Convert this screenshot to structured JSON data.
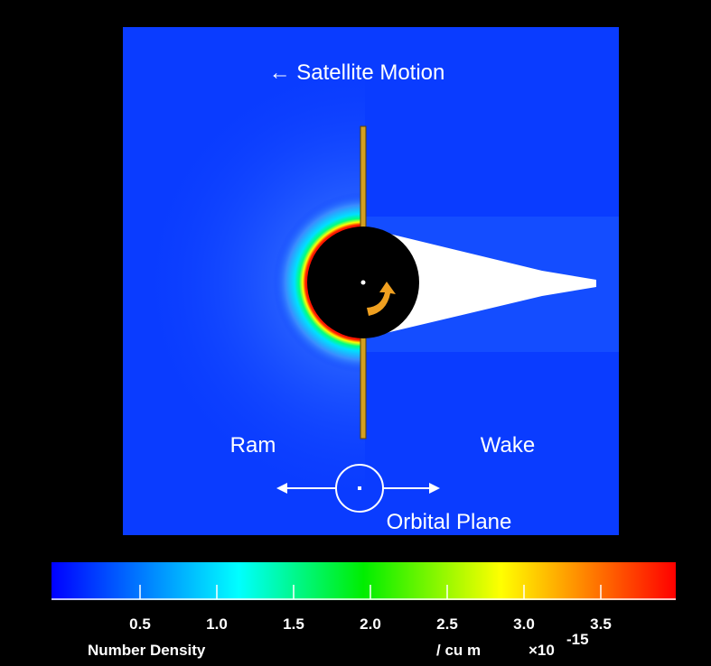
{
  "title": "← Satellite Motion",
  "labels": {
    "ram": "Ram",
    "wake": "Wake",
    "orbital_plane": "Orbital Plane"
  },
  "colorbar": {
    "label": "Number Density",
    "unit": "/ cu m",
    "multiplier": "×10",
    "exponent": "-15",
    "range": [
      0,
      4
    ],
    "ticks": [
      0.5,
      {
        "value": 1,
        "label": "1.0"
      },
      1.5,
      {
        "value": 2,
        "label": "2.0"
      },
      2.5,
      {
        "value": 3,
        "label": "3.0"
      },
      3.5
    ]
  }
}
